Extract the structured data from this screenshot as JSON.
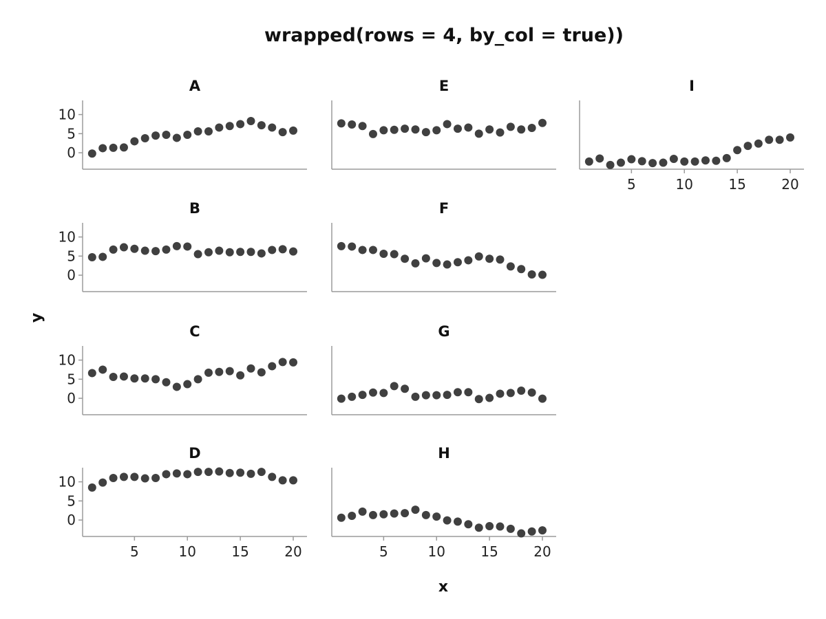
{
  "chart_data": {
    "type": "scatter",
    "title": "wrapped(rows = 4, by_col = true))",
    "xlabel": "x",
    "ylabel": "y",
    "x": [
      1,
      2,
      3,
      4,
      5,
      6,
      7,
      8,
      9,
      10,
      11,
      12,
      13,
      14,
      15,
      16,
      17,
      18,
      19,
      20
    ],
    "xlim": [
      0.1,
      21.3
    ],
    "ylim": [
      -4.3,
      13.7
    ],
    "xticks": [
      5,
      10,
      15,
      20
    ],
    "yticks": [
      0,
      5,
      10
    ],
    "color": "#404040",
    "axis_color": "#9a9a9a",
    "layout": {
      "rows": 4,
      "by_col": true
    },
    "panels": [
      {
        "name": "A",
        "values": [
          -0.2,
          1.2,
          1.3,
          1.4,
          3.0,
          3.8,
          4.5,
          4.7,
          3.9,
          4.7,
          5.6,
          5.6,
          6.6,
          7.0,
          7.5,
          8.3,
          7.2,
          6.6,
          5.4,
          5.8
        ]
      },
      {
        "name": "B",
        "values": [
          4.7,
          4.8,
          6.7,
          7.3,
          6.9,
          6.4,
          6.3,
          6.7,
          7.6,
          7.5,
          5.5,
          6.0,
          6.4,
          6.0,
          6.1,
          6.1,
          5.7,
          6.6,
          6.8,
          6.2
        ]
      },
      {
        "name": "C",
        "values": [
          6.6,
          7.5,
          5.6,
          5.7,
          5.2,
          5.2,
          5.0,
          4.2,
          3.0,
          3.7,
          5.0,
          6.7,
          6.9,
          7.1,
          6.0,
          7.8,
          6.8,
          8.4,
          9.5,
          9.4
        ]
      },
      {
        "name": "D",
        "values": [
          8.5,
          9.8,
          11.0,
          11.3,
          11.3,
          10.9,
          11.0,
          12.0,
          12.2,
          12.0,
          12.6,
          12.6,
          12.7,
          12.3,
          12.4,
          12.1,
          12.6,
          11.3,
          10.4,
          10.4
        ]
      },
      {
        "name": "E",
        "values": [
          7.7,
          7.4,
          7.0,
          4.9,
          5.9,
          6.0,
          6.3,
          6.1,
          5.4,
          5.9,
          7.5,
          6.3,
          6.6,
          5.0,
          6.1,
          5.3,
          6.8,
          6.1,
          6.5,
          7.8
        ]
      },
      {
        "name": "F",
        "values": [
          7.6,
          7.5,
          6.6,
          6.6,
          5.6,
          5.5,
          4.3,
          3.1,
          4.4,
          3.2,
          2.8,
          3.4,
          3.9,
          4.9,
          4.3,
          4.1,
          2.3,
          1.6,
          0.2,
          0.1
        ]
      },
      {
        "name": "G",
        "values": [
          -0.1,
          0.4,
          0.9,
          1.5,
          1.4,
          3.2,
          2.5,
          0.4,
          0.8,
          0.8,
          0.9,
          1.6,
          1.6,
          -0.2,
          0.1,
          1.2,
          1.4,
          2.0,
          1.5,
          -0.1
        ]
      },
      {
        "name": "H",
        "values": [
          0.6,
          1.1,
          2.2,
          1.3,
          1.5,
          1.7,
          1.8,
          2.7,
          1.3,
          0.9,
          -0.1,
          -0.4,
          -1.1,
          -2.0,
          -1.6,
          -1.7,
          -2.3,
          -3.5,
          -3.0,
          -2.7
        ]
      },
      {
        "name": "I",
        "values": [
          -2.3,
          -1.5,
          -3.2,
          -2.6,
          -1.7,
          -2.2,
          -2.7,
          -2.6,
          -1.6,
          -2.3,
          -2.3,
          -2.0,
          -2.1,
          -1.4,
          0.7,
          1.8,
          2.4,
          3.4,
          3.4,
          4.0
        ]
      }
    ]
  }
}
